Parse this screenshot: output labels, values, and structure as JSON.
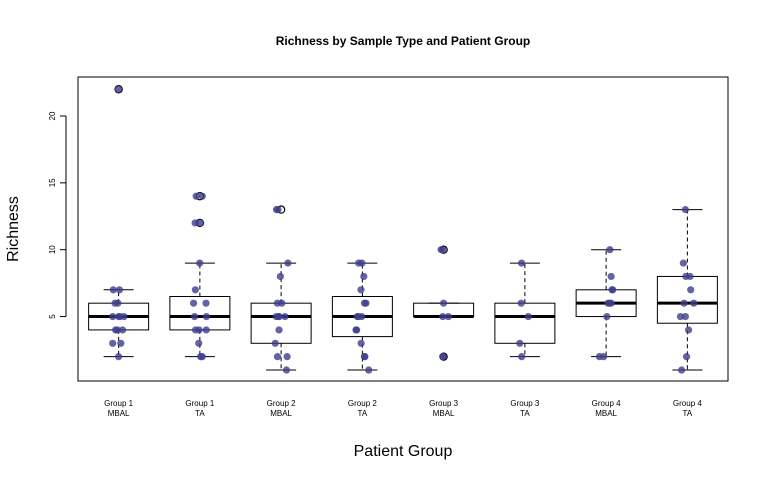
{
  "chart_data": {
    "type": "box",
    "title": "Richness by Sample Type and Patient Group",
    "xlabel": "Patient Group",
    "ylabel": "Richness",
    "ylim": [
      0,
      23
    ],
    "yticks": [
      5,
      10,
      15,
      20
    ],
    "grid": false,
    "legend": "none",
    "colors": {
      "points": "#3d3d8f",
      "box_stroke": "#000000",
      "outlier_fill": "#ffffff"
    },
    "categories": [
      [
        "Group 1",
        "MBAL"
      ],
      [
        "Group 1",
        "TA"
      ],
      [
        "Group 2",
        "MBAL"
      ],
      [
        "Group 2",
        "TA"
      ],
      [
        "Group 3",
        "MBAL"
      ],
      [
        "Group 3",
        "TA"
      ],
      [
        "Group 4",
        "MBAL"
      ],
      [
        "Group 4",
        "TA"
      ]
    ],
    "boxes": [
      {
        "min": 2,
        "q1": 4,
        "median": 5,
        "q3": 6,
        "max": 7,
        "outliers": [
          22
        ]
      },
      {
        "min": 2,
        "q1": 4,
        "median": 5,
        "q3": 6.5,
        "max": 9,
        "outliers": [
          14,
          12
        ]
      },
      {
        "min": 1,
        "q1": 3,
        "median": 5,
        "q3": 6,
        "max": 9,
        "outliers": [
          13
        ]
      },
      {
        "min": 1,
        "q1": 3.5,
        "median": 5,
        "q3": 6.5,
        "max": 9,
        "outliers": []
      },
      {
        "min": 5,
        "q1": 5,
        "median": 5,
        "q3": 6,
        "max": 6,
        "outliers": [
          10,
          2
        ]
      },
      {
        "min": 2,
        "q1": 3,
        "median": 5,
        "q3": 6,
        "max": 9,
        "outliers": []
      },
      {
        "min": 2,
        "q1": 5,
        "median": 6,
        "q3": 7,
        "max": 10,
        "outliers": []
      },
      {
        "min": 1,
        "q1": 4.5,
        "median": 6,
        "q3": 8,
        "max": 13,
        "outliers": []
      }
    ],
    "points": [
      [
        22,
        7,
        7,
        6,
        6,
        5,
        5,
        5,
        5,
        4,
        4,
        4,
        3,
        3,
        2
      ],
      [
        14,
        14,
        12,
        12,
        9,
        7,
        6,
        6,
        5,
        5,
        4,
        4,
        4,
        3,
        2,
        2
      ],
      [
        13,
        13,
        9,
        8,
        6,
        6,
        5,
        5,
        5,
        5,
        4,
        3,
        2,
        2,
        1
      ],
      [
        9,
        9,
        8,
        7,
        6,
        6,
        5,
        5,
        5,
        4,
        4,
        3,
        2,
        2,
        1
      ],
      [
        10,
        10,
        6,
        5,
        5,
        2,
        2
      ],
      [
        9,
        6,
        5,
        3,
        2
      ],
      [
        10,
        8,
        7,
        7,
        6,
        6,
        6,
        5,
        2,
        2
      ],
      [
        13,
        9,
        8,
        8,
        7,
        6,
        6,
        5,
        5,
        4,
        2,
        1
      ]
    ]
  }
}
